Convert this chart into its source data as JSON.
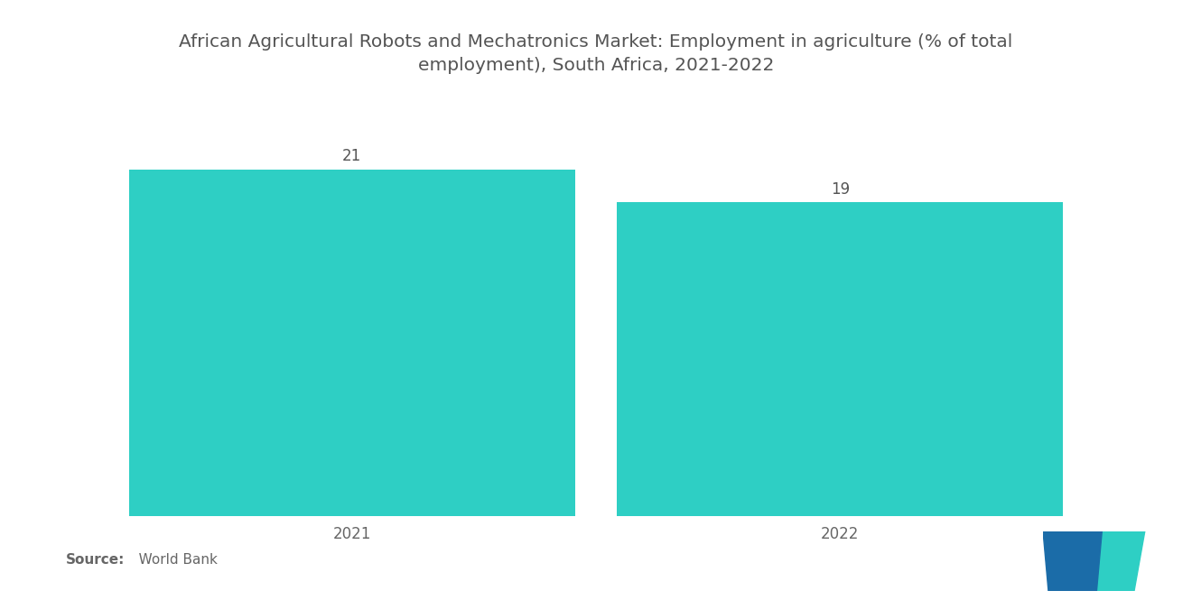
{
  "title_line1": "African Agricultural Robots and Mechatronics Market: Employment in agriculture (% of total",
  "title_line2": "employment), South Africa, 2021-2022",
  "categories": [
    "2021",
    "2022"
  ],
  "values": [
    21,
    19
  ],
  "bar_color": "#2ECFC4",
  "bar_width": 0.42,
  "value_labels": [
    "21",
    "19"
  ],
  "source_bold": "Source:",
  "source_text": "   World Bank",
  "title_fontsize": 14.5,
  "label_fontsize": 12,
  "value_fontsize": 12,
  "source_fontsize": 11,
  "title_color": "#555555",
  "label_color": "#666666",
  "value_color": "#555555",
  "background_color": "#ffffff",
  "ylim": [
    0,
    26
  ],
  "bar_positions": [
    0.27,
    0.73
  ]
}
